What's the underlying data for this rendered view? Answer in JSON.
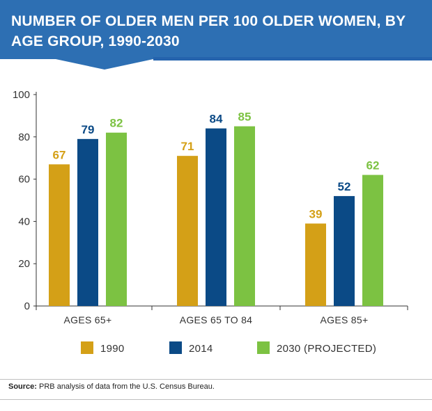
{
  "header": {
    "title": "NUMBER OF OLDER MEN PER 100 OLDER WOMEN, BY AGE  GROUP, 1990-2030",
    "bg_color": "#2d6fb3",
    "band_color": "#2563ad"
  },
  "chart_data": {
    "type": "bar",
    "title": "NUMBER OF OLDER MEN PER 100 OLDER WOMEN, BY AGE  GROUP, 1990-2030",
    "xlabel": "",
    "ylabel": "",
    "categories": [
      "AGES 65+",
      "AGES 65 TO 84",
      "AGES 85+"
    ],
    "series": [
      {
        "name": "1990",
        "values": [
          67,
          71,
          39
        ],
        "color": "#d4a017"
      },
      {
        "name": "2014",
        "values": [
          79,
          84,
          52
        ],
        "color": "#0b4a86"
      },
      {
        "name": "2030 (PROJECTED)",
        "values": [
          82,
          85,
          62
        ],
        "color": "#7cc242"
      }
    ],
    "ylim": [
      0,
      100
    ],
    "yticks": [
      0,
      20,
      40,
      60,
      80,
      100
    ],
    "grid": false,
    "legend": "bottom",
    "data_labels": true
  },
  "source": {
    "label": "Source:",
    "text": " PRB analysis of data from the U.S. Census Bureau."
  }
}
